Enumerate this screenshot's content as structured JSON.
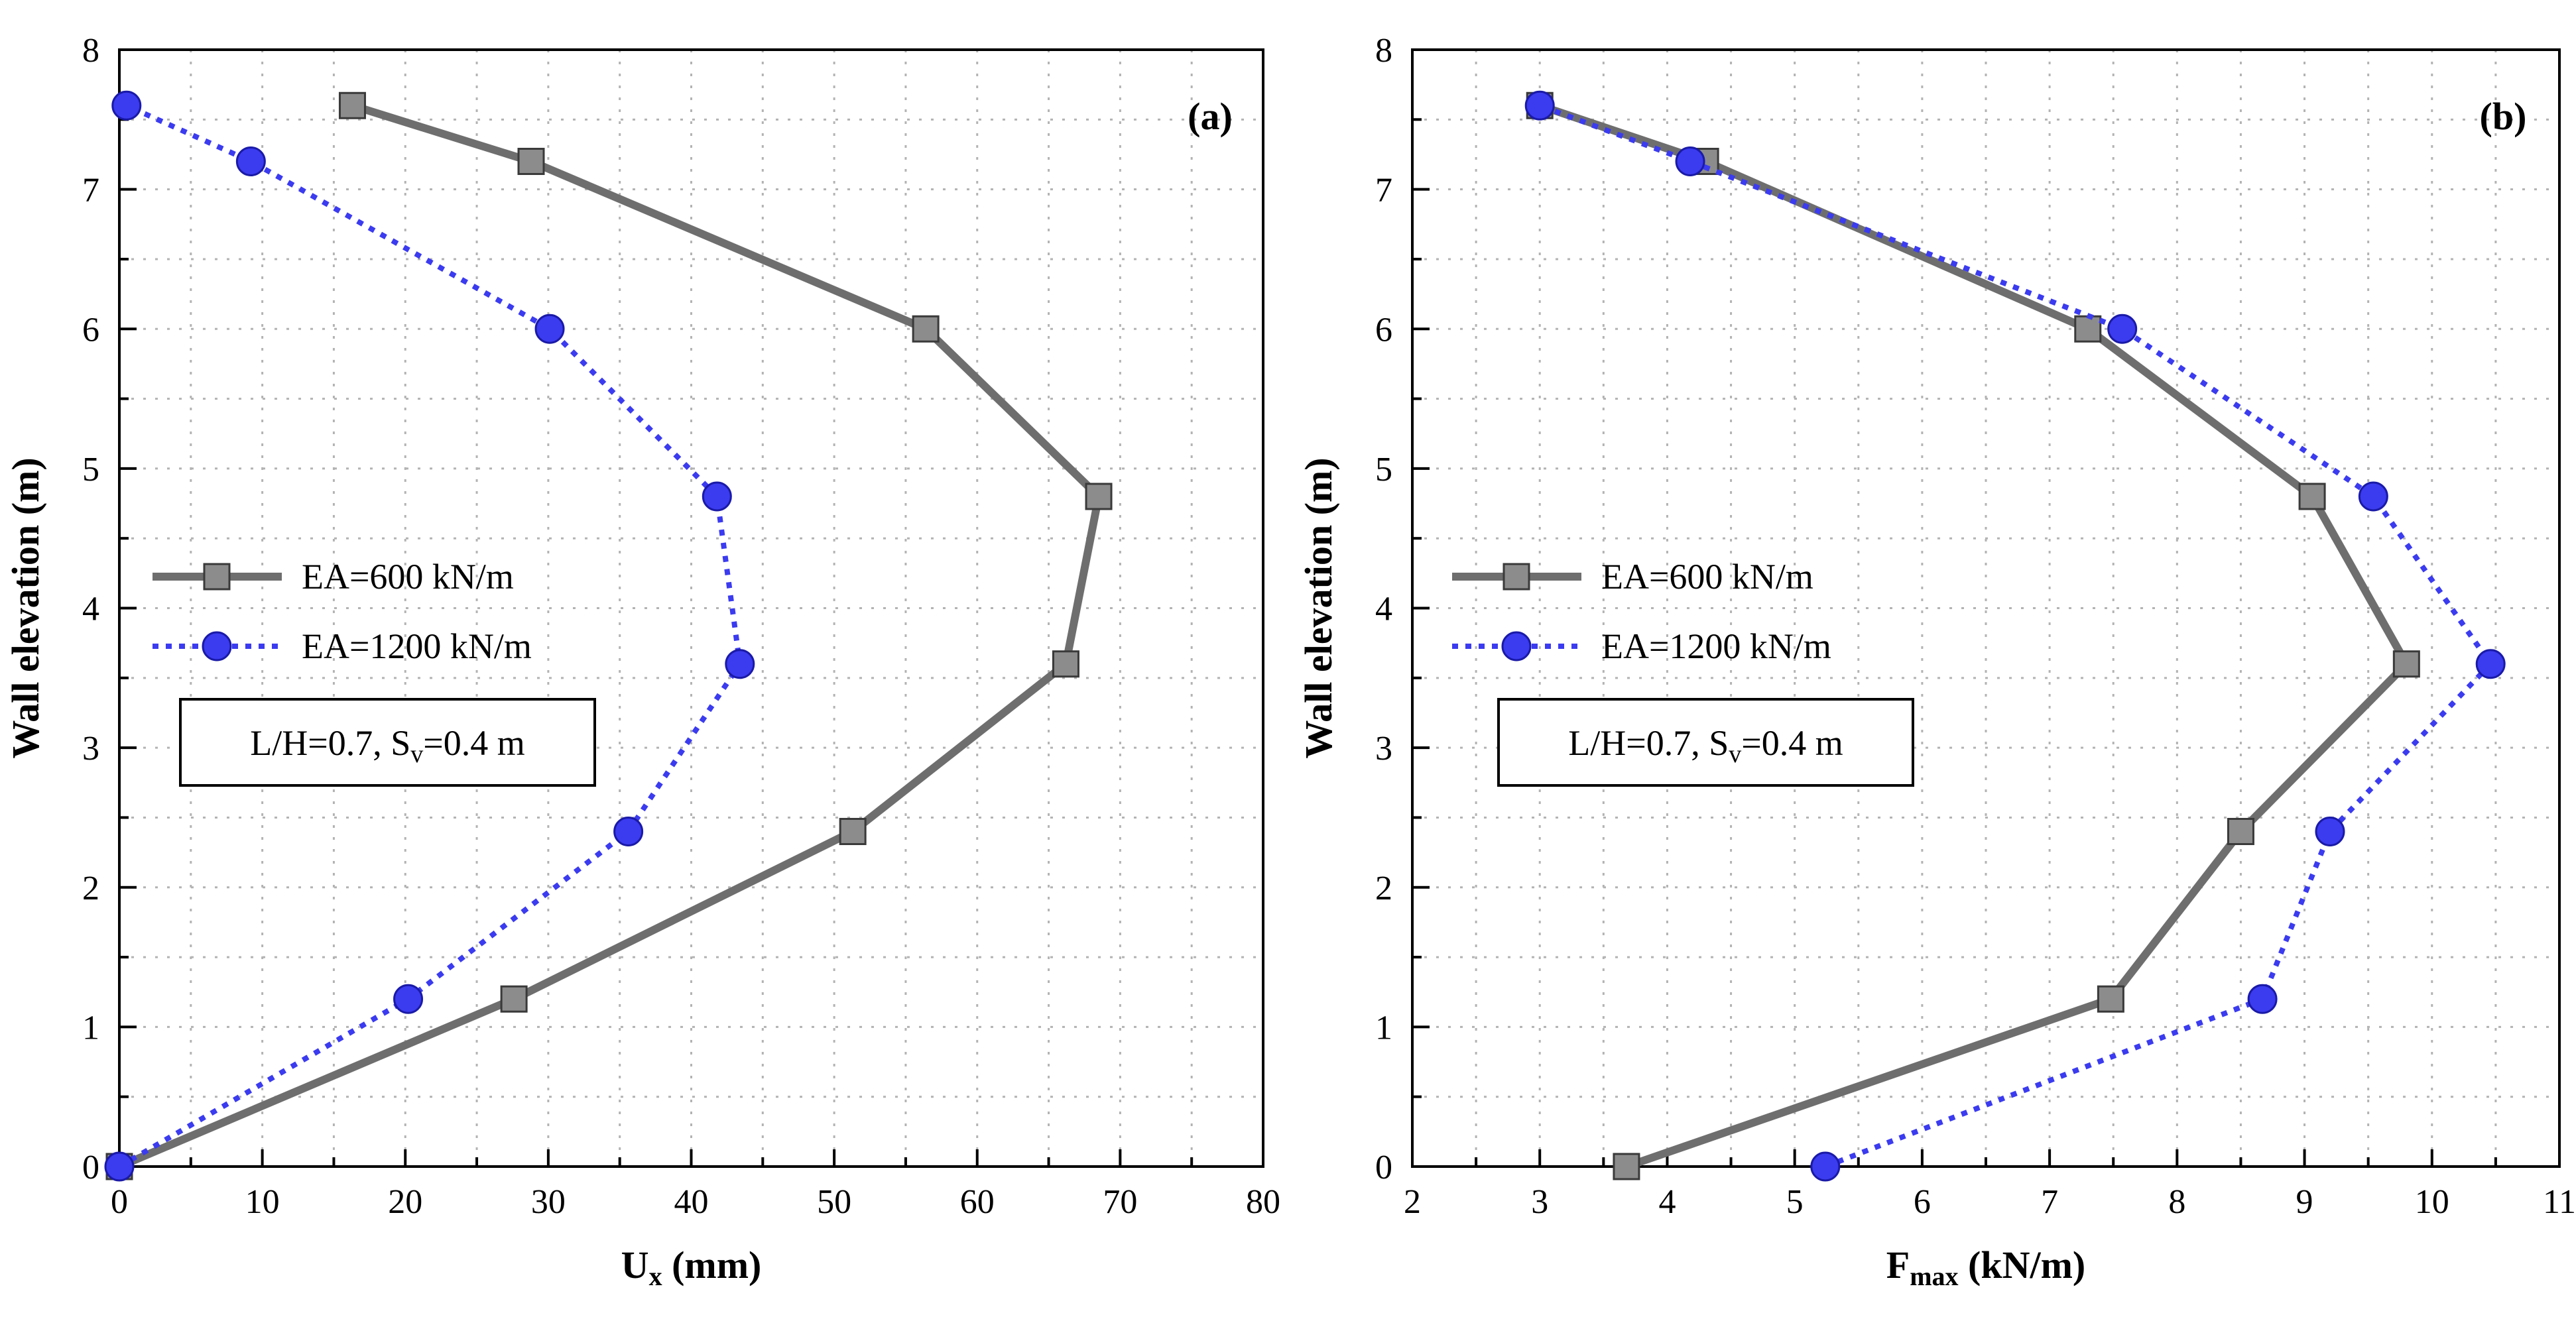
{
  "chart_data": [
    {
      "type": "line",
      "panel_label": "(a)",
      "xlabel": "U",
      "xlabel_sub": "x",
      "xlabel_unit": " (mm)",
      "ylabel": "Wall elevation (m)",
      "xlim": [
        0,
        80
      ],
      "ylim": [
        0,
        8
      ],
      "x_ticks": [
        0,
        10,
        20,
        30,
        40,
        50,
        60,
        70,
        80
      ],
      "y_ticks": [
        0,
        1,
        2,
        3,
        4,
        5,
        6,
        7,
        8
      ],
      "grid": true,
      "legend_position": "center-left",
      "note": {
        "main": "L/H=0.7, S",
        "sub": "v",
        "tail": "=0.4 m"
      },
      "series": [
        {
          "name": "EA=600 kN/m",
          "color": "#6e6e6e",
          "marker": "square",
          "line": "solid",
          "points": [
            [
              0,
              0
            ],
            [
              27.6,
              1.2
            ],
            [
              51.3,
              2.4
            ],
            [
              66.2,
              3.6
            ],
            [
              68.5,
              4.8
            ],
            [
              56.4,
              6.0
            ],
            [
              28.8,
              7.2
            ],
            [
              16.3,
              7.6
            ]
          ]
        },
        {
          "name": "EA=1200 kN/m",
          "color": "#3b3bf0",
          "marker": "circle",
          "line": "dotted",
          "points": [
            [
              0,
              0
            ],
            [
              20.2,
              1.2
            ],
            [
              35.6,
              2.4
            ],
            [
              43.4,
              3.6
            ],
            [
              41.8,
              4.8
            ],
            [
              30.1,
              6.0
            ],
            [
              9.2,
              7.2
            ],
            [
              0.5,
              7.6
            ]
          ]
        }
      ]
    },
    {
      "type": "line",
      "panel_label": "(b)",
      "xlabel": "F",
      "xlabel_sub": "max",
      "xlabel_unit": " (kN/m)",
      "ylabel": "Wall elevation (m)",
      "xlim": [
        2,
        11
      ],
      "ylim": [
        0,
        8
      ],
      "x_ticks": [
        2,
        3,
        4,
        5,
        6,
        7,
        8,
        9,
        10,
        11
      ],
      "y_ticks": [
        0,
        1,
        2,
        3,
        4,
        5,
        6,
        7,
        8
      ],
      "grid": true,
      "legend_position": "center-left",
      "note": {
        "main": "L/H=0.7, S",
        "sub": "v",
        "tail": "=0.4 m"
      },
      "series": [
        {
          "name": "EA=600 kN/m",
          "color": "#6e6e6e",
          "marker": "square",
          "line": "solid",
          "points": [
            [
              3.68,
              0
            ],
            [
              7.48,
              1.2
            ],
            [
              8.5,
              2.4
            ],
            [
              9.8,
              3.6
            ],
            [
              9.06,
              4.8
            ],
            [
              7.3,
              6.0
            ],
            [
              4.3,
              7.2
            ],
            [
              3.0,
              7.6
            ]
          ]
        },
        {
          "name": "EA=1200 kN/m",
          "color": "#3b3bf0",
          "marker": "circle",
          "line": "dotted",
          "points": [
            [
              5.24,
              0
            ],
            [
              8.67,
              1.2
            ],
            [
              9.2,
              2.4
            ],
            [
              10.46,
              3.6
            ],
            [
              9.54,
              4.8
            ],
            [
              7.57,
              6.0
            ],
            [
              4.18,
              7.2
            ],
            [
              3.0,
              7.6
            ]
          ]
        }
      ]
    }
  ]
}
